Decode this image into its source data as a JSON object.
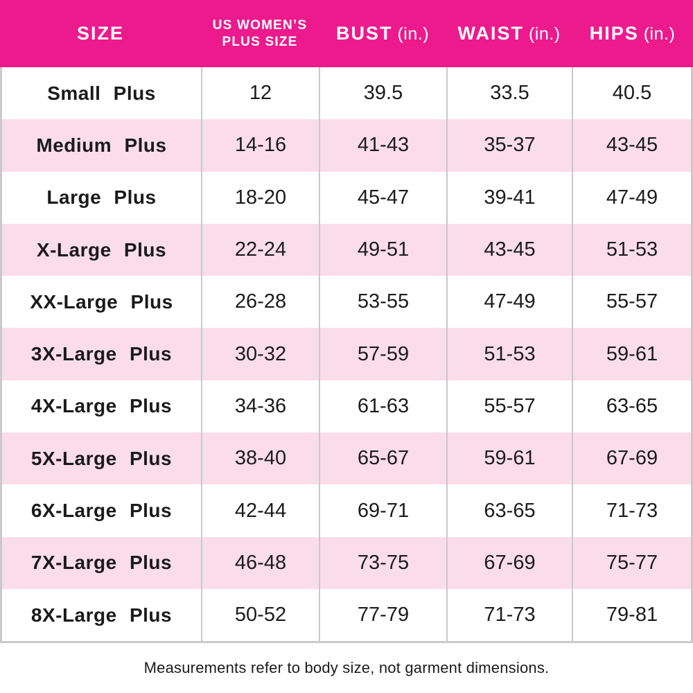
{
  "colors": {
    "header_bg": "#EC1A8D",
    "header_text": "#FFFFFF",
    "row_alt_bg": "#FADDE9",
    "grid_line": "#C9C9C9",
    "text": "#1B1B1B"
  },
  "header": {
    "col_size": "SIZE",
    "col_us_line1": "US WOMEN’S",
    "col_us_line2": "PLUS SIZE",
    "col_bust": "BUST",
    "col_waist": "WAIST",
    "col_hips": "HIPS",
    "unit": "(in.)"
  },
  "footer": {
    "note": "Measurements refer to body size, not garment dimensions."
  },
  "chart_data": {
    "type": "table",
    "columns": [
      "SIZE",
      "US WOMEN’S PLUS SIZE",
      "BUST (in.)",
      "WAIST (in.)",
      "HIPS (in.)"
    ],
    "rows": [
      [
        "Small Plus",
        "12",
        "39.5",
        "33.5",
        "40.5"
      ],
      [
        "Medium Plus",
        "14-16",
        "41-43",
        "35-37",
        "43-45"
      ],
      [
        "Large Plus",
        "18-20",
        "45-47",
        "39-41",
        "47-49"
      ],
      [
        "X-Large Plus",
        "22-24",
        "49-51",
        "43-45",
        "51-53"
      ],
      [
        "XX-Large Plus",
        "26-28",
        "53-55",
        "47-49",
        "55-57"
      ],
      [
        "3X-Large Plus",
        "30-32",
        "57-59",
        "51-53",
        "59-61"
      ],
      [
        "4X-Large Plus",
        "34-36",
        "61-63",
        "55-57",
        "63-65"
      ],
      [
        "5X-Large Plus",
        "38-40",
        "65-67",
        "59-61",
        "67-69"
      ],
      [
        "6X-Large Plus",
        "42-44",
        "69-71",
        "63-65",
        "71-73"
      ],
      [
        "7X-Large Plus",
        "46-48",
        "73-75",
        "67-69",
        "75-77"
      ],
      [
        "8X-Large Plus",
        "50-52",
        "77-79",
        "71-73",
        "79-81"
      ]
    ],
    "footnote": "Measurements refer to body size, not garment dimensions."
  }
}
